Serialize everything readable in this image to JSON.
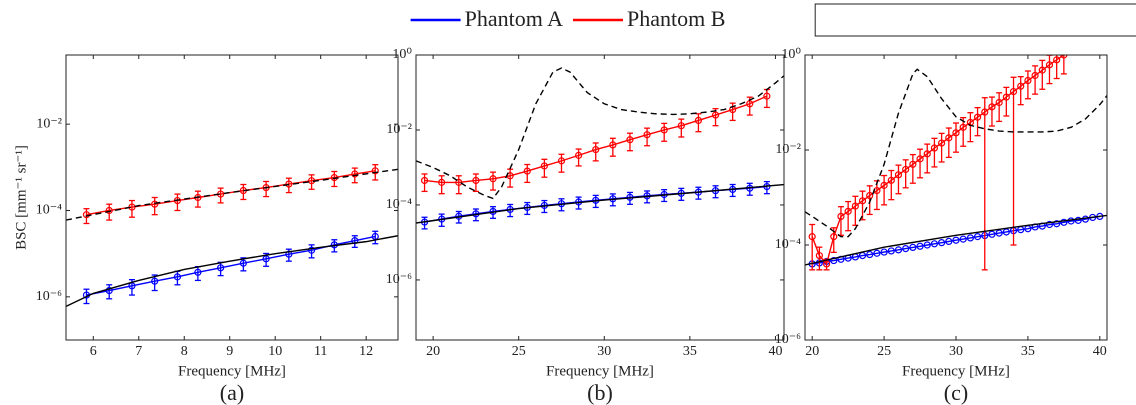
{
  "chart_data": [
    {
      "type": "line",
      "caption": "(a)",
      "xlabel": "Frequency [MHz]",
      "ylabel": "BSC [mm⁻¹ sr⁻¹]",
      "log_y": true,
      "xlim": [
        5.4,
        12.7
      ],
      "xticks": [
        6,
        7,
        8,
        9,
        10,
        11,
        12
      ],
      "ylim": [
        1e-07,
        0.4
      ],
      "yticks": [
        {
          "value": 1e-06,
          "label": "10⁻⁶"
        },
        {
          "value": 0.0001,
          "label": "10⁻⁴"
        },
        {
          "value": 0.01,
          "label": "10⁻²"
        }
      ],
      "series": [
        {
          "name": "Phantom A",
          "color": "#0000ff",
          "x": [
            5.85,
            6.35,
            6.85,
            7.35,
            7.85,
            8.3,
            8.8,
            9.3,
            9.8,
            10.3,
            10.8,
            11.3,
            11.75,
            12.2
          ],
          "values": [
            1.1e-06,
            1.4e-06,
            1.8e-06,
            2.3e-06,
            2.9e-06,
            3.7e-06,
            4.7e-06,
            6e-06,
            7.6e-06,
            9.7e-06,
            1.2e-05,
            1.6e-05,
            2e-05,
            2.5e-05
          ],
          "errors": [
            4e-07,
            5e-07,
            7e-07,
            9e-07,
            1e-06,
            1.3e-06,
            1.6e-06,
            2e-06,
            2.5e-06,
            3e-06,
            4e-06,
            5e-06,
            6e-06,
            8e-06
          ]
        },
        {
          "name": "Phantom B",
          "color": "#ff0000",
          "x": [
            5.85,
            6.35,
            6.85,
            7.35,
            7.85,
            8.3,
            8.8,
            9.3,
            9.8,
            10.3,
            10.8,
            11.3,
            11.75,
            12.2
          ],
          "values": [
            8e-05,
            0.0001,
            0.00012,
            0.00014,
            0.00017,
            0.0002,
            0.00024,
            0.00029,
            0.00034,
            0.00041,
            0.00049,
            0.00058,
            0.0007,
            0.00083
          ],
          "errors": [
            3e-05,
            4e-05,
            5e-05,
            6e-05,
            7e-05,
            8e-05,
            9e-05,
            0.00011,
            0.00013,
            0.00015,
            0.00018,
            0.00022,
            0.00026,
            0.00032
          ]
        },
        {
          "color": "#000000",
          "x": [
            5.4,
            6,
            7,
            8,
            9,
            10,
            11,
            12,
            12.7
          ],
          "values": [
            6e-07,
            1.2e-06,
            2.4e-06,
            4.3e-06,
            6.7e-06,
            1e-05,
            1.4e-05,
            1.9e-05,
            2.6e-05
          ]
        },
        {
          "color": "#000000",
          "dashed": true,
          "x": [
            5.4,
            7,
            9,
            11,
            12.7
          ],
          "values": [
            6e-05,
            0.00013,
            0.00026,
            0.0005,
            0.0009
          ]
        }
      ]
    },
    {
      "type": "line",
      "caption": "(b)",
      "xlabel": "Frequency [MHz]",
      "log_y": true,
      "xlim": [
        19,
        40.5
      ],
      "xticks": [
        20,
        25,
        30,
        35,
        40
      ],
      "ylim": [
        2.5e-08,
        1
      ],
      "yticks": [
        {
          "value": 1e-06,
          "label": "10⁻⁶"
        },
        {
          "value": 0.0001,
          "label": "10⁻⁴"
        },
        {
          "value": 0.01,
          "label": "10⁻²"
        },
        {
          "value": 1,
          "label": "10⁰"
        }
      ],
      "series": [
        {
          "name": "Phantom A",
          "color": "#0000ff",
          "x": [
            19.5,
            20.5,
            21.5,
            22.5,
            23.5,
            24.5,
            25.5,
            26.5,
            27.5,
            28.5,
            29.5,
            30.5,
            31.5,
            32.5,
            33.5,
            34.5,
            35.5,
            36.5,
            37.5,
            38.5,
            39.5
          ],
          "values": [
            3.5e-05,
            4.2e-05,
            5e-05,
            5.8e-05,
            6.7e-05,
            7.6e-05,
            8.6e-05,
            9.7e-05,
            0.000108,
            0.00012,
            0.000133,
            0.000146,
            0.00016,
            0.000175,
            0.00019,
            0.000205,
            0.00022,
            0.00024,
            0.00026,
            0.00028,
            0.00031
          ],
          "errors": [
            1.2e-05,
            1.5e-05,
            1.7e-05,
            2e-05,
            2.3e-05,
            2.7e-05,
            3e-05,
            3.4e-05,
            3.8e-05,
            4.2e-05,
            4.7e-05,
            5.1e-05,
            5.6e-05,
            6.1e-05,
            6.6e-05,
            7.2e-05,
            7.7e-05,
            8.4e-05,
            9.1e-05,
            9.8e-05,
            0.00011
          ]
        },
        {
          "name": "Phantom B",
          "color": "#ff0000",
          "x": [
            19.5,
            20.5,
            21.5,
            22.5,
            23.5,
            24.5,
            25.5,
            26.5,
            27.5,
            28.5,
            29.5,
            30.5,
            31.5,
            32.5,
            33.5,
            34.5,
            35.5,
            36.5,
            37.5,
            38.5,
            39.5
          ],
          "values": [
            0.00045,
            0.0004,
            0.0004,
            0.00045,
            0.0005,
            0.0006,
            0.0008,
            0.0011,
            0.0015,
            0.0021,
            0.003,
            0.004,
            0.0055,
            0.0075,
            0.01,
            0.013,
            0.018,
            0.025,
            0.035,
            0.05,
            0.08
          ],
          "errors": [
            0.00022,
            0.0002,
            0.0002,
            0.00022,
            0.00025,
            0.0003,
            0.0004,
            0.00055,
            0.00075,
            0.001,
            0.0015,
            0.002,
            0.0027,
            0.0037,
            0.005,
            0.0065,
            0.009,
            0.012,
            0.017,
            0.025,
            0.04
          ]
        },
        {
          "color": "#000000",
          "x": [
            19,
            25,
            30,
            35,
            40.5
          ],
          "values": [
            3.3e-05,
            8e-05,
            0.000135,
            0.00021,
            0.00035
          ]
        },
        {
          "color": "#000000",
          "dashed": true,
          "x": [
            19,
            20,
            21,
            22,
            23,
            23.5,
            24,
            25,
            26,
            27,
            27.5,
            28,
            29,
            30,
            31,
            32,
            33,
            34,
            35,
            36,
            37,
            38,
            39,
            40,
            40.5
          ],
          "values": [
            0.0015,
            0.001,
            0.0006,
            0.0003,
            0.00018,
            0.00015,
            0.0003,
            0.003,
            0.05,
            0.35,
            0.45,
            0.35,
            0.1,
            0.05,
            0.035,
            0.03,
            0.027,
            0.026,
            0.027,
            0.03,
            0.035,
            0.05,
            0.08,
            0.18,
            0.28
          ]
        }
      ]
    },
    {
      "type": "line",
      "caption": "(c)",
      "xlabel": "Frequency [MHz]",
      "log_y": true,
      "xlim": [
        19.5,
        40.5
      ],
      "xticks": [
        20,
        25,
        30,
        35,
        40
      ],
      "ylim": [
        1e-06,
        1
      ],
      "yticks": [
        {
          "value": 1e-06,
          "label": "10⁻⁶"
        },
        {
          "value": 0.0001,
          "label": "10⁻⁴"
        },
        {
          "value": 0.01,
          "label": "10⁻²"
        },
        {
          "value": 1,
          "label": "10⁰"
        }
      ],
      "series": [
        {
          "name": "Phantom A",
          "color": "#0000ff",
          "x": [
            20,
            20.5,
            21,
            21.5,
            22,
            22.5,
            23,
            23.5,
            24,
            24.5,
            25,
            25.5,
            26,
            26.5,
            27,
            27.5,
            28,
            28.5,
            29,
            29.5,
            30,
            30.5,
            31,
            31.5,
            32,
            32.5,
            33,
            33.5,
            34,
            34.5,
            35,
            35.5,
            36,
            36.5,
            37,
            37.5,
            38,
            38.5,
            39,
            39.5,
            40
          ],
          "values": [
            4e-05,
            4.2e-05,
            4.5e-05,
            4.7e-05,
            5e-05,
            5.3e-05,
            5.6e-05,
            6e-05,
            6.3e-05,
            6.7e-05,
            7.1e-05,
            7.5e-05,
            7.9e-05,
            8.4e-05,
            8.9e-05,
            9.4e-05,
            0.0001,
            0.000106,
            0.000112,
            0.000119,
            0.000126,
            0.000133,
            0.000141,
            0.00015,
            0.000158,
            0.000168,
            0.000178,
            0.000188,
            0.0002,
            0.00021,
            0.00022,
            0.00024,
            0.00025,
            0.00027,
            0.00028,
            0.0003,
            0.00032,
            0.00033,
            0.00035,
            0.00038,
            0.0004
          ]
        },
        {
          "name": "Phantom B",
          "color": "#ff0000",
          "x": [
            20,
            20.5,
            21,
            21.5,
            22,
            22.5,
            23,
            23.5,
            24,
            24.5,
            25,
            25.5,
            26,
            26.5,
            27,
            27.5,
            28,
            28.5,
            29,
            29.5,
            30,
            30.5,
            31,
            31.5,
            32,
            32.5,
            33,
            33.5,
            34,
            34.5,
            35,
            35.5,
            36,
            36.5,
            37,
            37.5
          ],
          "values": [
            0.00015,
            6e-05,
            4e-05,
            0.00015,
            0.0004,
            0.00051,
            0.00066,
            0.00085,
            0.0011,
            0.0014,
            0.0018,
            0.0023,
            0.003,
            0.0039,
            0.005,
            0.0065,
            0.0083,
            0.011,
            0.014,
            0.018,
            0.023,
            0.03,
            0.038,
            0.049,
            0.063,
            0.081,
            0.1,
            0.13,
            0.17,
            0.22,
            0.29,
            0.37,
            0.48,
            0.62,
            0.79,
            1.0
          ],
          "errors": [
            0.00012,
            3e-05,
            1e-05,
            8e-05,
            0.00024,
            0.00031,
            0.0004,
            0.00051,
            0.00066,
            0.00084,
            0.0011,
            0.0014,
            0.0018,
            0.0023,
            0.003,
            0.0039,
            0.005,
            0.0066,
            0.0084,
            0.011,
            0.014,
            0.018,
            0.023,
            0.029,
            0.06297,
            0.049,
            0.06,
            0.078,
            0.1699,
            0.13,
            0.17,
            0.22,
            0.29,
            0.37,
            0.47,
            0.6
          ]
        },
        {
          "color": "#000000",
          "x": [
            19.5,
            25,
            30,
            35,
            40.5
          ],
          "values": [
            3.8e-05,
            9e-05,
            0.00016,
            0.00026,
            0.00042
          ]
        },
        {
          "color": "#000000",
          "dashed": true,
          "x": [
            19.5,
            20,
            21,
            22,
            22.5,
            23,
            24,
            25,
            26,
            27,
            27.3,
            28,
            29,
            30,
            31,
            32,
            33,
            34,
            35,
            36,
            37,
            38,
            39,
            40,
            40.5
          ],
          "values": [
            0.0005,
            0.0004,
            0.00025,
            0.00015,
            0.00015,
            0.00022,
            0.0008,
            0.005,
            0.06,
            0.4,
            0.5,
            0.35,
            0.12,
            0.05,
            0.033,
            0.028,
            0.025,
            0.024,
            0.024,
            0.024,
            0.025,
            0.03,
            0.045,
            0.09,
            0.14
          ]
        }
      ]
    }
  ]
}
